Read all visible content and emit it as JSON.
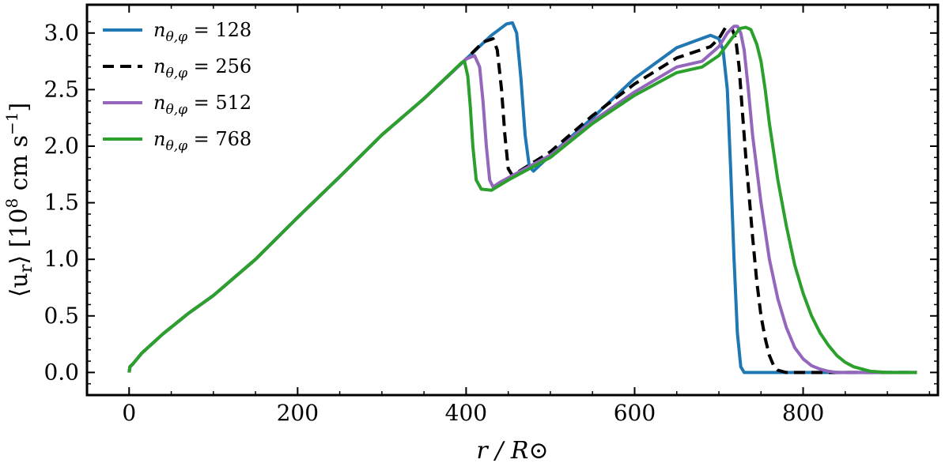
{
  "chart_data": {
    "type": "line",
    "xlabel": "r / R⊙",
    "ylabel": "⟨u_r⟩ [10^8 cm s^-1]",
    "xlim": [
      -50,
      960
    ],
    "ylim": [
      -0.2,
      3.25
    ],
    "xticks": [
      0,
      200,
      400,
      600,
      800
    ],
    "yticks": [
      0.0,
      0.5,
      1.0,
      1.5,
      2.0,
      2.5,
      3.0
    ],
    "xtick_labels": [
      "0",
      "200",
      "400",
      "600",
      "800"
    ],
    "ytick_labels": [
      "0.0",
      "0.5",
      "1.0",
      "1.5",
      "2.0",
      "2.5",
      "3.0"
    ],
    "legend_position": "top-left",
    "grid": false,
    "series": [
      {
        "name": "n_θ,φ = 128",
        "legend_label": "nθ,φ = 128",
        "color": "#1f77b4",
        "dash": "solid",
        "x": [
          0,
          1,
          5,
          15,
          40,
          70,
          100,
          150,
          200,
          250,
          300,
          350,
          400,
          430,
          448,
          455,
          460,
          465,
          470,
          475,
          480,
          500,
          550,
          600,
          650,
          690,
          700,
          705,
          710,
          714,
          718,
          722,
          726,
          730,
          740,
          800,
          935
        ],
        "y": [
          0.0,
          0.05,
          0.08,
          0.17,
          0.34,
          0.52,
          0.68,
          1.0,
          1.37,
          1.73,
          2.1,
          2.42,
          2.77,
          2.98,
          3.08,
          3.09,
          3.0,
          2.6,
          2.1,
          1.82,
          1.78,
          1.92,
          2.25,
          2.6,
          2.87,
          2.98,
          2.95,
          2.85,
          2.5,
          1.8,
          1.0,
          0.35,
          0.05,
          0.0,
          0.0,
          0.0,
          0.0
        ]
      },
      {
        "name": "n_θ,φ = 256",
        "legend_label": "nθ,φ = 256",
        "color": "#000000",
        "dash": "dashed",
        "x": [
          0,
          1,
          5,
          15,
          40,
          70,
          100,
          150,
          200,
          250,
          300,
          350,
          400,
          420,
          432,
          437,
          442,
          446,
          450,
          455,
          500,
          550,
          600,
          650,
          690,
          700,
          708,
          712,
          716,
          720,
          724,
          728,
          732,
          736,
          740,
          745,
          750,
          755,
          760,
          765,
          770,
          780,
          800,
          935
        ],
        "y": [
          0.0,
          0.05,
          0.08,
          0.17,
          0.34,
          0.52,
          0.68,
          1.0,
          1.37,
          1.73,
          2.1,
          2.42,
          2.77,
          2.92,
          2.95,
          2.85,
          2.5,
          2.1,
          1.8,
          1.74,
          1.95,
          2.27,
          2.55,
          2.78,
          2.88,
          2.95,
          3.05,
          3.06,
          3.03,
          2.95,
          2.7,
          2.3,
          1.9,
          1.55,
          1.2,
          0.8,
          0.5,
          0.3,
          0.15,
          0.06,
          0.02,
          0.0,
          0.0,
          0.0
        ]
      },
      {
        "name": "n_θ,φ = 512",
        "legend_label": "nθ,φ = 512",
        "color": "#9467bd",
        "dash": "solid",
        "x": [
          0,
          1,
          5,
          15,
          40,
          70,
          100,
          150,
          200,
          250,
          300,
          350,
          400,
          410,
          416,
          420,
          424,
          428,
          432,
          440,
          500,
          550,
          600,
          650,
          680,
          700,
          710,
          718,
          722,
          726,
          730,
          735,
          740,
          750,
          760,
          770,
          780,
          790,
          800,
          810,
          820,
          830,
          840,
          860,
          935
        ],
        "y": [
          0.0,
          0.05,
          0.08,
          0.17,
          0.34,
          0.52,
          0.68,
          1.0,
          1.37,
          1.73,
          2.1,
          2.42,
          2.77,
          2.8,
          2.7,
          2.4,
          2.0,
          1.7,
          1.64,
          1.68,
          1.92,
          2.22,
          2.48,
          2.7,
          2.75,
          2.88,
          3.0,
          3.06,
          3.06,
          3.0,
          2.85,
          2.5,
          2.1,
          1.5,
          1.0,
          0.65,
          0.4,
          0.22,
          0.12,
          0.06,
          0.03,
          0.01,
          0.0,
          0.0,
          0.0
        ]
      },
      {
        "name": "n_θ,φ = 768",
        "legend_label": "nθ,φ = 768",
        "color": "#2ca02c",
        "dash": "solid",
        "x": [
          0,
          1,
          5,
          15,
          40,
          70,
          100,
          150,
          200,
          250,
          300,
          350,
          395,
          398,
          402,
          405,
          408,
          412,
          418,
          430,
          450,
          500,
          550,
          600,
          650,
          680,
          700,
          715,
          725,
          732,
          738,
          745,
          750,
          755,
          760,
          770,
          780,
          790,
          800,
          810,
          820,
          830,
          840,
          850,
          860,
          870,
          880,
          900,
          935
        ],
        "y": [
          0.0,
          0.05,
          0.08,
          0.17,
          0.34,
          0.52,
          0.68,
          1.0,
          1.37,
          1.73,
          2.1,
          2.42,
          2.74,
          2.75,
          2.62,
          2.35,
          2.0,
          1.7,
          1.62,
          1.61,
          1.7,
          1.9,
          2.2,
          2.45,
          2.65,
          2.7,
          2.8,
          2.95,
          3.04,
          3.05,
          3.03,
          2.9,
          2.75,
          2.5,
          2.2,
          1.7,
          1.3,
          0.95,
          0.7,
          0.5,
          0.35,
          0.24,
          0.15,
          0.09,
          0.05,
          0.03,
          0.01,
          0.0,
          0.0
        ]
      }
    ]
  }
}
